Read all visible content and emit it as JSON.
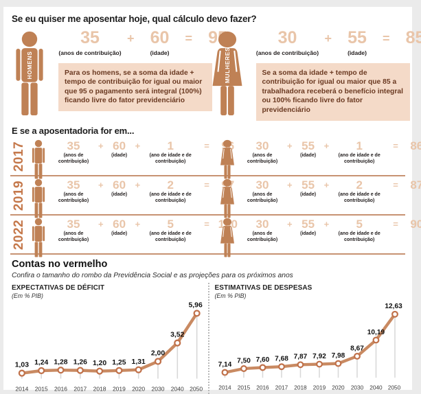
{
  "colors": {
    "figure": "#bf8155",
    "light_number": "#e9c5a9",
    "year_text": "#c5794c",
    "note_box_bg": "#f4dac8",
    "note_box_text": "#6b3a22",
    "row_separator": "#c79272",
    "chart_line": "#c98a62",
    "chart_marker_stroke": "#c0714a",
    "chart_dropline": "#d8d8d8"
  },
  "symbols": {
    "plus": "+",
    "equals": "="
  },
  "header": {
    "title": "Se eu quiser me aposentar hoje, qual cálculo devo fazer?"
  },
  "calculator": {
    "contrib_label": "(anos de contribuição)",
    "age_label": "(idade)",
    "men": {
      "group_label": "HOMENS",
      "contrib": "35",
      "age": "60",
      "total": "95",
      "note": "Para os homens, se a soma da idade + tempo de contribuição for igual ou maior que 95 o pagamento será integral (100%) ficando livre do fator previdenciário"
    },
    "women": {
      "group_label": "MULHERES",
      "contrib": "30",
      "age": "55",
      "total": "85",
      "note": "Se a soma da idade + tempo de contribuição for igual ou maior que 85 a trabalhadora receberá o benefício integral ou 100% ficando livre do fator previdenciário"
    }
  },
  "future": {
    "heading": "E se a aposentadoria for em...",
    "labels": {
      "contrib": "(anos de contribuição)",
      "age": "(idade)",
      "extra": "(ano de idade e de contribuição)"
    },
    "rows": [
      {
        "year": "2017",
        "men": {
          "contrib": "35",
          "age": "60",
          "extra": "1",
          "total": "96"
        },
        "women": {
          "contrib": "30",
          "age": "55",
          "extra": "1",
          "total": "86"
        }
      },
      {
        "year": "2019",
        "men": {
          "contrib": "35",
          "age": "60",
          "extra": "2",
          "total": "97"
        },
        "women": {
          "contrib": "30",
          "age": "55",
          "extra": "2",
          "total": "87"
        }
      },
      {
        "year": "2022",
        "men": {
          "contrib": "35",
          "age": "60",
          "extra": "5",
          "total": "100"
        },
        "women": {
          "contrib": "30",
          "age": "55",
          "extra": "5",
          "total": "90"
        }
      }
    ]
  },
  "deficit_section": {
    "heading": "Contas no vermelho",
    "subtitle": "Confira o tamanho do rombo da Previdência Social e as projeções para os próximos anos"
  },
  "chart_data": [
    {
      "type": "line",
      "title": "EXPECTATIVAS DE DÉFICIT",
      "unit_label": "(Em % PIB)",
      "categories": [
        "2014",
        "2015",
        "2016",
        "2017",
        "2018",
        "2019",
        "2020",
        "2030",
        "2040",
        "2050"
      ],
      "values": [
        1.03,
        1.24,
        1.28,
        1.26,
        1.2,
        1.25,
        1.31,
        2.0,
        3.52,
        5.96
      ],
      "value_labels": [
        "1,03",
        "1,24",
        "1,28",
        "1,26",
        "1,20",
        "1,25",
        "1,31",
        "2,00",
        "3,52",
        "5,96"
      ],
      "ylim": [
        1.03,
        5.96
      ],
      "grid": false,
      "legend": "none",
      "line_color": "#c98a62",
      "marker_color": "#c0714a",
      "dropline_color": "#d8d8d8",
      "marker": "open-circle"
    },
    {
      "type": "line",
      "title": "ESTIMATIVAS DE DESPESAS",
      "unit_label": "(Em % PIB)",
      "categories": [
        "2014",
        "2015",
        "2016",
        "2017",
        "2018",
        "2019",
        "2020",
        "2030",
        "2040",
        "2050"
      ],
      "values": [
        7.14,
        7.5,
        7.6,
        7.68,
        7.87,
        7.92,
        7.98,
        8.67,
        10.19,
        12.63
      ],
      "value_labels": [
        "7,14",
        "7,50",
        "7,60",
        "7,68",
        "7,87",
        "7,92",
        "7,98",
        "8,67",
        "10,19",
        "12,63"
      ],
      "ylim": [
        7.14,
        12.63
      ],
      "grid": false,
      "legend": "none",
      "line_color": "#c98a62",
      "marker_color": "#c0714a",
      "dropline_color": "#d8d8d8",
      "marker": "open-circle"
    }
  ]
}
